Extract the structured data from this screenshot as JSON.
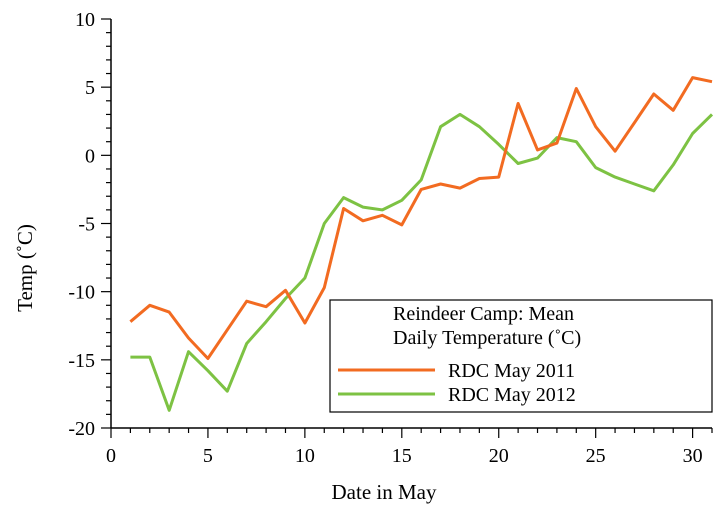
{
  "chart_data": {
    "type": "line",
    "title": "",
    "xlabel": "Date in May",
    "ylabel": "Temp (˚C)",
    "xlim": [
      0,
      31
    ],
    "ylim": [
      -20,
      10
    ],
    "xticks": [
      0,
      5,
      10,
      15,
      20,
      25,
      30
    ],
    "yticks": [
      -20,
      -15,
      -10,
      -5,
      0,
      5,
      10
    ],
    "grid": false,
    "legend": {
      "title_line1": "Reindeer Camp: Mean",
      "title_line2": "Daily Temperature (˚C)",
      "placement": "bottom-center"
    },
    "x": [
      1,
      2,
      3,
      4,
      5,
      6,
      7,
      8,
      9,
      10,
      11,
      12,
      13,
      14,
      15,
      16,
      17,
      18,
      19,
      20,
      21,
      22,
      23,
      24,
      25,
      26,
      27,
      28,
      29,
      30,
      31
    ],
    "series": [
      {
        "name": "RDC May 2011",
        "color": "#F26B21",
        "values": [
          -12.2,
          -11.0,
          -11.5,
          -13.4,
          -14.9,
          -12.8,
          -10.7,
          -11.1,
          -9.9,
          -12.3,
          -9.7,
          -3.9,
          -4.8,
          -4.4,
          -5.1,
          -2.5,
          -2.1,
          -2.4,
          -1.7,
          -1.6,
          3.8,
          0.4,
          0.9,
          4.9,
          2.1,
          0.3,
          2.4,
          4.5,
          3.3,
          5.7,
          5.4
        ]
      },
      {
        "name": "RDC May 2012",
        "color": "#7DC243",
        "values": [
          -14.8,
          -14.8,
          -18.7,
          -14.4,
          -15.8,
          -17.3,
          -13.8,
          -12.2,
          -10.5,
          -9.0,
          -5.0,
          -3.1,
          -3.8,
          -4.0,
          -3.3,
          -1.8,
          2.1,
          3.0,
          2.1,
          0.8,
          -0.6,
          -0.2,
          1.3,
          1.0,
          -0.9,
          -1.6,
          -2.1,
          -2.6,
          -0.7,
          1.6,
          3.0
        ]
      }
    ]
  }
}
